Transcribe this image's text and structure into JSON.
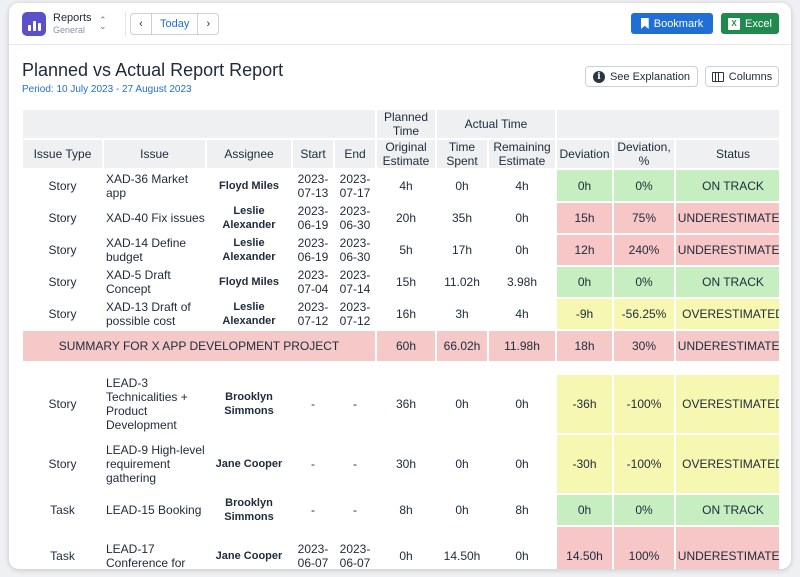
{
  "app": {
    "name": "Reports",
    "subtitle": "General",
    "switcher_icon": "up-down-chevron-icon"
  },
  "nav": {
    "prev": "‹",
    "today": "Today",
    "next": "›"
  },
  "toolbar": {
    "bookmark": "Bookmark",
    "excel": "Excel",
    "excel_badge": "X"
  },
  "report": {
    "title": "Planned vs Actual Report Report",
    "period": "Period: 10 July 2023 - 27 August 2023",
    "explanation_btn": "See Explanation",
    "columns_btn": "Columns"
  },
  "headers": {
    "planned_group": "Planned Time",
    "actual_group": "Actual Time",
    "issue_type": "Issue Type",
    "issue": "Issue",
    "assignee": "Assignee",
    "start": "Start",
    "end": "End",
    "original_estimate": "Original Estimate",
    "time_spent": "Time Spent",
    "remaining_estimate": "Remaining Estimate",
    "deviation": "Deviation",
    "deviation_pct": "Deviation, %",
    "status": "Status"
  },
  "group1": {
    "rows": [
      {
        "type": "Story",
        "issue": "XAD-36 Market app",
        "assignee": "Floyd Miles",
        "start": "2023-07-13",
        "end": "2023-07-17",
        "orig": "4h",
        "spent": "0h",
        "remain": "4h",
        "dev": "0h",
        "devp": "0%",
        "status": "ON TRACK",
        "color": "green"
      },
      {
        "type": "Story",
        "issue": "XAD-40 Fix issues",
        "assignee": "Leslie Alexander",
        "start": "2023-06-19",
        "end": "2023-06-30",
        "orig": "20h",
        "spent": "35h",
        "remain": "0h",
        "dev": "15h",
        "devp": "75%",
        "status": "UNDERESTIMATED",
        "color": "red"
      },
      {
        "type": "Story",
        "issue": "XAD-14 Define budget",
        "assignee": "Leslie Alexander",
        "start": "2023-06-19",
        "end": "2023-06-30",
        "orig": "5h",
        "spent": "17h",
        "remain": "0h",
        "dev": "12h",
        "devp": "240%",
        "status": "UNDERESTIMATED",
        "color": "red"
      },
      {
        "type": "Story",
        "issue": "XAD-5 Draft Concept",
        "assignee": "Floyd Miles",
        "start": "2023-07-04",
        "end": "2023-07-14",
        "orig": "15h",
        "spent": "11.02h",
        "remain": "3.98h",
        "dev": "0h",
        "devp": "0%",
        "status": "ON TRACK",
        "color": "green"
      },
      {
        "type": "Story",
        "issue": "XAD-13 Draft of possible cost",
        "assignee": "Leslie Alexander",
        "start": "2023-07-12",
        "end": "2023-07-12",
        "orig": "16h",
        "spent": "3h",
        "remain": "4h",
        "dev": "-9h",
        "devp": "-56.25%",
        "status": "OVERESTIMATED",
        "color": "yellow"
      }
    ],
    "summary": {
      "label": "SUMMARY FOR X APP DEVELOPMENT PROJECT",
      "orig": "60h",
      "spent": "66.02h",
      "remain": "11.98h",
      "dev": "18h",
      "devp": "30%",
      "status": "UNDERESTIMATED"
    }
  },
  "group2": {
    "rows": [
      {
        "type": "Story",
        "issue": "LEAD-3 Technicalities + Product Development",
        "assignee": "Brooklyn Simmons",
        "start": "-",
        "end": "-",
        "orig": "36h",
        "spent": "0h",
        "remain": "0h",
        "dev": "-36h",
        "devp": "-100%",
        "status": "OVERESTIMATED",
        "color": "yellow"
      },
      {
        "type": "Story",
        "issue": "LEAD-9 High-level requirement gathering",
        "assignee": "Jane Cooper",
        "start": "-",
        "end": "-",
        "orig": "30h",
        "spent": "0h",
        "remain": "0h",
        "dev": "-30h",
        "devp": "-100%",
        "status": "OVERESTIMATED",
        "color": "yellow"
      },
      {
        "type": "Task",
        "issue": "LEAD-15 Booking",
        "assignee": "Brooklyn Simmons",
        "start": "-",
        "end": "-",
        "orig": "8h",
        "spent": "0h",
        "remain": "8h",
        "dev": "0h",
        "devp": "0%",
        "status": "ON TRACK",
        "color": "green"
      },
      {
        "type": "Task",
        "issue": "LEAD-17 Conference for",
        "assignee": "Jane Cooper",
        "start": "2023-06-07",
        "end": "2023-06-07",
        "orig": "0h",
        "spent": "14.50h",
        "remain": "0h",
        "dev": "14.50h",
        "devp": "100%",
        "status": "UNDERESTIMATED",
        "color": "red"
      }
    ]
  }
}
